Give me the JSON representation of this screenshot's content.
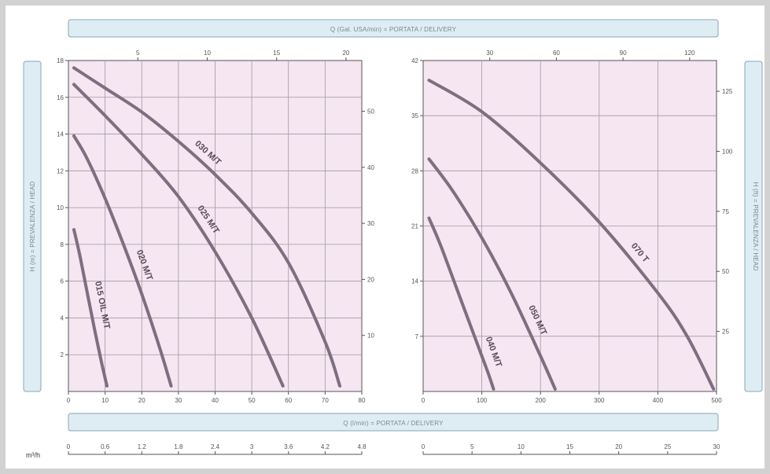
{
  "colors": {
    "plot_bg": "#f5e6f2",
    "grid": "#a09aa0",
    "curve": "#7f6d80",
    "band_bg": "#deedf4",
    "band_border": "#8aa5b3"
  },
  "labels": {
    "top_band": "Q (Gal. USA/min) = PORTATA / DELIVERY",
    "bottom_band": "Q (l/min) = PORTATA / DELIVERY",
    "left_band": "H (m) = PREVALENZA / HEAD",
    "right_band": "H (ft) = PREVALENZA / HEAD",
    "m3h_unit": "m³/h"
  },
  "chart_data": [
    {
      "type": "line",
      "x_unit": "l/min",
      "y_unit": "m",
      "xlim": [
        0,
        80
      ],
      "ylim": [
        0,
        18
      ],
      "grid": true,
      "x_ticks": [
        "0",
        "10",
        "20",
        "30",
        "40",
        "50",
        "60",
        "70",
        "80"
      ],
      "y_ticks": [
        "2",
        "4",
        "6",
        "8",
        "10",
        "12",
        "14",
        "16",
        "18"
      ],
      "top_axis": {
        "unit": "Gal. USA/min",
        "ticks": [
          {
            "v": 5,
            "label": "5"
          },
          {
            "v": 10,
            "label": "10"
          },
          {
            "v": 15,
            "label": "15"
          },
          {
            "v": 20,
            "label": "20"
          }
        ]
      },
      "right_axis": {
        "unit": "ft",
        "ticks": [
          {
            "v": 10,
            "label": "10"
          },
          {
            "v": 20,
            "label": "20"
          },
          {
            "v": 30,
            "label": "30"
          },
          {
            "v": 40,
            "label": "40"
          },
          {
            "v": 50,
            "label": "50"
          }
        ]
      },
      "bottom_axis": {
        "unit": "m³/h",
        "ticks": [
          "0",
          "0.6",
          "1.2",
          "1.8",
          "2.4",
          "3",
          "3.6",
          "4.2",
          "4.8"
        ]
      },
      "series": [
        {
          "name": "015 OIL M/T",
          "x": [
            1.5,
            3,
            5,
            7,
            9,
            10.5
          ],
          "y": [
            8.8,
            7.5,
            5.5,
            3.5,
            1.6,
            0.3
          ]
        },
        {
          "name": "020 M/T",
          "x": [
            1.5,
            5,
            10,
            15,
            20,
            25,
            28
          ],
          "y": [
            13.9,
            12.7,
            10.5,
            8.0,
            5.3,
            2.3,
            0.3
          ]
        },
        {
          "name": "025 M/T",
          "x": [
            1.5,
            10,
            20,
            30,
            40,
            50,
            58.5
          ],
          "y": [
            16.7,
            15.0,
            12.9,
            10.6,
            7.6,
            4.0,
            0.3
          ]
        },
        {
          "name": "030 M/T",
          "x": [
            1.5,
            10,
            20,
            30,
            40,
            50,
            60,
            70,
            74
          ],
          "y": [
            17.6,
            16.5,
            15.2,
            13.6,
            11.8,
            9.7,
            7.0,
            2.7,
            0.3
          ]
        }
      ]
    },
    {
      "type": "line",
      "x_unit": "l/min",
      "y_unit": "m",
      "xlim": [
        0,
        500
      ],
      "ylim": [
        0,
        42
      ],
      "grid": true,
      "x_ticks": [
        "0",
        "100",
        "200",
        "300",
        "400",
        "500"
      ],
      "y_ticks": [
        "7",
        "14",
        "21",
        "28",
        "35",
        "42"
      ],
      "top_axis": {
        "unit": "Gal. USA/min",
        "ticks": [
          {
            "v": 30,
            "label": "30"
          },
          {
            "v": 60,
            "label": "60"
          },
          {
            "v": 90,
            "label": "90"
          },
          {
            "v": 120,
            "label": "120"
          }
        ]
      },
      "right_axis": {
        "unit": "ft",
        "ticks": [
          {
            "v": 25,
            "label": "25"
          },
          {
            "v": 50,
            "label": "50"
          },
          {
            "v": 75,
            "label": "75"
          },
          {
            "v": 100,
            "label": "100"
          },
          {
            "v": 125,
            "label": "125"
          }
        ]
      },
      "bottom_axis": {
        "unit": "m³/h",
        "ticks": [
          "0",
          "5",
          "10",
          "15",
          "20",
          "25",
          "30"
        ]
      },
      "series": [
        {
          "name": "040 M/T",
          "x": [
            10,
            30,
            60,
            90,
            110,
            120
          ],
          "y": [
            22.0,
            18.5,
            12.5,
            6.5,
            2.5,
            0.3
          ]
        },
        {
          "name": "050 M/T",
          "x": [
            10,
            50,
            100,
            150,
            200,
            225
          ],
          "y": [
            29.5,
            25.5,
            19.5,
            12.5,
            4.5,
            0.3
          ]
        },
        {
          "name": "070 T",
          "x": [
            10,
            100,
            200,
            300,
            400,
            450,
            495
          ],
          "y": [
            39.5,
            35.5,
            29.0,
            21.5,
            12.5,
            7.0,
            0.3
          ]
        }
      ]
    }
  ]
}
